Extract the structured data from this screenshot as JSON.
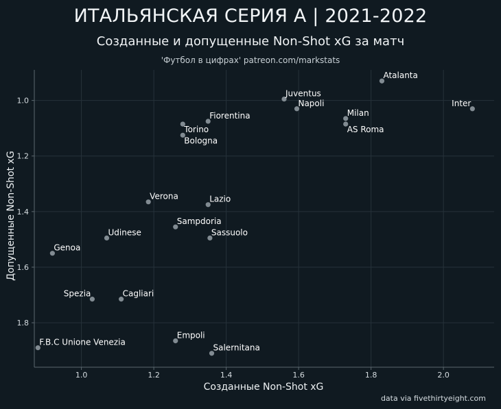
{
  "title": "ИТАЛЬЯНСКАЯ СЕРИЯ А | 2021-2022",
  "subtitle": "Созданные и допущенные Non-Shot xG за матч",
  "caption": "'Футбол в цифрах' patreon.com/markstats",
  "source": "data via fivethirtyeight.com",
  "colors": {
    "background": "#101a21",
    "grid": "#26323a",
    "point": "#8e989f",
    "axis": "#5c686f"
  },
  "chart_data": {
    "type": "scatter",
    "xlabel": "Созданные Non-Shot xG",
    "ylabel": "Допущенные Non-Shot xG",
    "xlim": [
      0.87,
      2.14
    ],
    "ylim": [
      1.96,
      0.89
    ],
    "y_reversed": true,
    "grid": true,
    "xticks": [
      1.0,
      1.2,
      1.4,
      1.6,
      1.8,
      2.0
    ],
    "xtick_labels": [
      "1.0",
      "1.2",
      "1.4",
      "1.6",
      "1.8",
      "2.0"
    ],
    "yticks": [
      1.0,
      1.2,
      1.4,
      1.6,
      1.8
    ],
    "ytick_labels": [
      "1.0",
      "1.2",
      "1.4",
      "1.6",
      "1.8"
    ],
    "points": [
      {
        "label": "Atalanta",
        "x": 1.83,
        "y": 0.93,
        "anchor": "right"
      },
      {
        "label": "Juventus",
        "x": 1.56,
        "y": 0.995,
        "anchor": "right"
      },
      {
        "label": "Napoli",
        "x": 1.595,
        "y": 1.03,
        "anchor": "right"
      },
      {
        "label": "Inter",
        "x": 2.08,
        "y": 1.03,
        "anchor": "left"
      },
      {
        "label": "Milan",
        "x": 1.73,
        "y": 1.065,
        "anchor": "right"
      },
      {
        "label": "AS Roma",
        "x": 1.73,
        "y": 1.085,
        "anchor": "right-below"
      },
      {
        "label": "Fiorentina",
        "x": 1.35,
        "y": 1.075,
        "anchor": "right"
      },
      {
        "label": "Torino",
        "x": 1.28,
        "y": 1.085,
        "anchor": "right-below"
      },
      {
        "label": "Bologna",
        "x": 1.28,
        "y": 1.125,
        "anchor": "right-below"
      },
      {
        "label": "Verona",
        "x": 1.185,
        "y": 1.365,
        "anchor": "right"
      },
      {
        "label": "Lazio",
        "x": 1.35,
        "y": 1.375,
        "anchor": "right"
      },
      {
        "label": "Sampdoria",
        "x": 1.26,
        "y": 1.455,
        "anchor": "right"
      },
      {
        "label": "Udinese",
        "x": 1.07,
        "y": 1.495,
        "anchor": "right"
      },
      {
        "label": "Sassuolo",
        "x": 1.355,
        "y": 1.495,
        "anchor": "right"
      },
      {
        "label": "Genoa",
        "x": 0.92,
        "y": 1.55,
        "anchor": "right"
      },
      {
        "label": "Spezia",
        "x": 1.03,
        "y": 1.715,
        "anchor": "left"
      },
      {
        "label": "Cagliari",
        "x": 1.11,
        "y": 1.715,
        "anchor": "right"
      },
      {
        "label": "Empoli",
        "x": 1.26,
        "y": 1.865,
        "anchor": "right"
      },
      {
        "label": "F.B.C Unione Venezia",
        "x": 0.88,
        "y": 1.89,
        "anchor": "right"
      },
      {
        "label": "Salernitana",
        "x": 1.36,
        "y": 1.91,
        "anchor": "right"
      }
    ]
  }
}
